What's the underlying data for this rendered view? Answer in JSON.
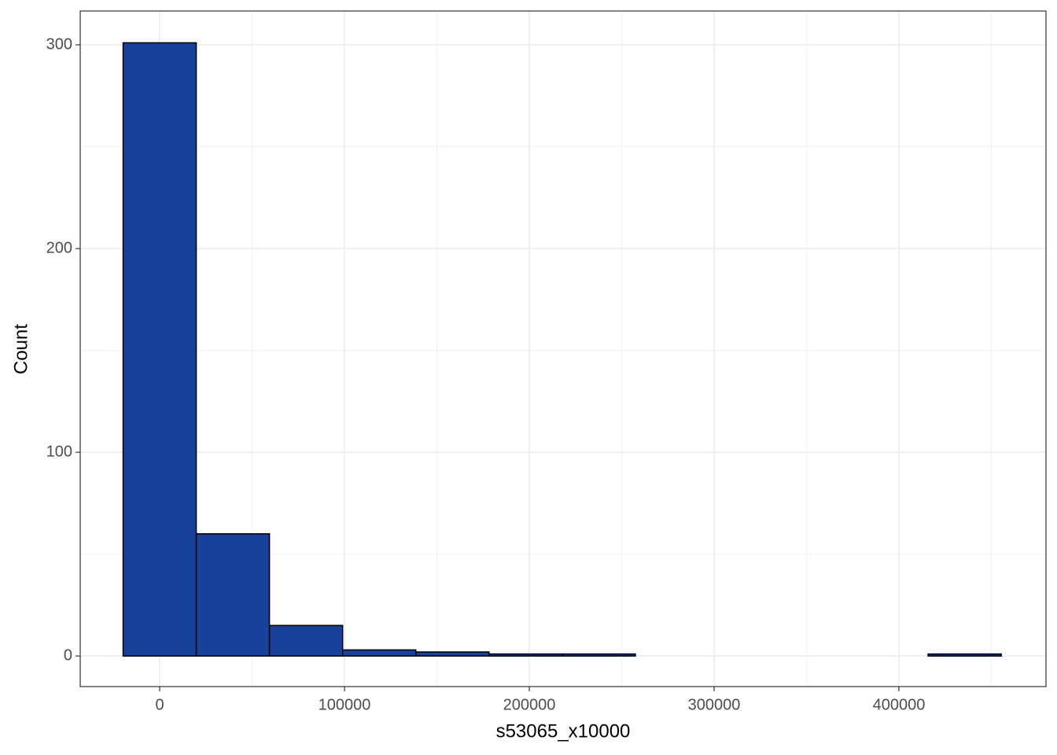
{
  "chart_data": {
    "type": "histogram",
    "x_label": "s53065_x10000",
    "y_label": "Count",
    "bins": [
      -19800,
      19800,
      59400,
      99000,
      138600,
      178200,
      217800,
      257400,
      297000,
      336600,
      376200,
      415800,
      455400
    ],
    "counts": [
      301,
      60,
      15,
      3,
      2,
      1,
      1,
      0,
      0,
      0,
      0,
      1
    ],
    "color": "#17419a",
    "edge_color": "#000000",
    "xlim": [
      -43000,
      479600
    ],
    "xticks": [
      0,
      100000,
      200000,
      300000,
      400000
    ],
    "ylim": [
      -15,
      316.6
    ],
    "yticks": [
      0,
      100,
      200,
      300
    ],
    "grid": true
  }
}
